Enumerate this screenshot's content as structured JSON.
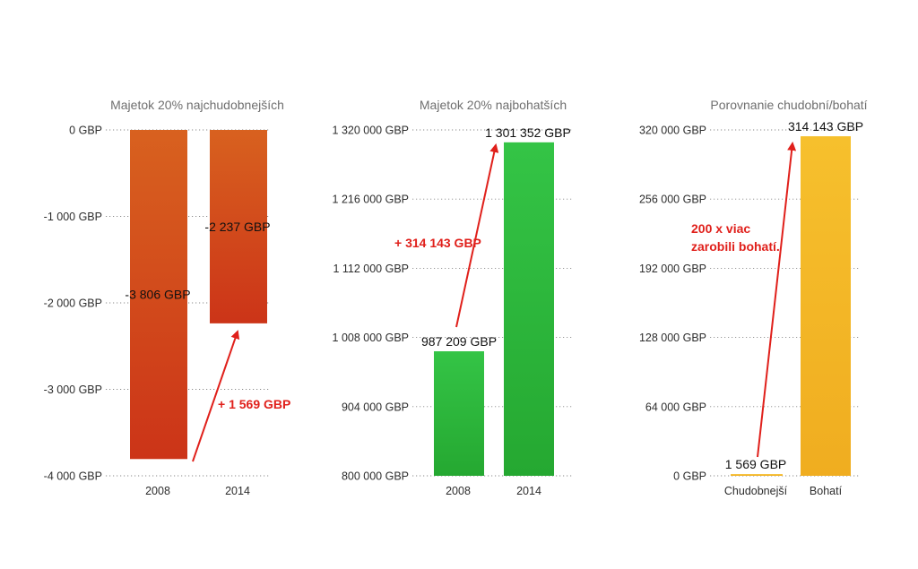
{
  "chart_data": [
    {
      "type": "bar",
      "title": "Majetok 20% najchudobnejších",
      "categories": [
        "2008",
        "2014"
      ],
      "values": [
        -3806,
        -2237
      ],
      "value_labels": [
        "-3 806 GBP",
        "-2 237 GBP"
      ],
      "ylim": [
        -4000,
        0
      ],
      "yticks": [
        0,
        -1000,
        -2000,
        -3000,
        -4000
      ],
      "ytick_labels": [
        "0 GBP",
        "-1 000 GBP",
        "-2 000 GBP",
        "-3 000 GBP",
        "-4 000 GBP"
      ],
      "grid": true,
      "color": "#d2461c",
      "annotation": "+ 1 569 GBP"
    },
    {
      "type": "bar",
      "title": "Majetok 20% najbohatších",
      "categories": [
        "2008",
        "2014"
      ],
      "values": [
        987209,
        1301352
      ],
      "value_labels": [
        "987 209 GBP",
        "1 301 352 GBP"
      ],
      "ylim": [
        800000,
        1320000
      ],
      "yticks": [
        1320000,
        1216000,
        1112000,
        1008000,
        904000,
        800000
      ],
      "ytick_labels": [
        "1 320 000 GBP",
        "1 216 000 GBP",
        "1 112 000 GBP",
        "1 008 000 GBP",
        "904 000 GBP",
        "800 000 GBP"
      ],
      "grid": true,
      "color": "#2db83d",
      "annotation": "+ 314 143 GBP"
    },
    {
      "type": "bar",
      "title": "Porovnanie chudobní/bohatí",
      "categories": [
        "Chudobnejší",
        "Bohatí"
      ],
      "values": [
        1569,
        314143
      ],
      "value_labels": [
        "1 569 GBP",
        "314 143 GBP"
      ],
      "ylim": [
        0,
        320000
      ],
      "yticks": [
        320000,
        256000,
        192000,
        128000,
        64000,
        0
      ],
      "ytick_labels": [
        "320 000 GBP",
        "256 000 GBP",
        "192 000 GBP",
        "128 000 GBP",
        "64 000 GBP",
        "0 GBP"
      ],
      "grid": true,
      "color": "#f3b827",
      "annotation": "200 x viac zarobili bohatí."
    }
  ]
}
